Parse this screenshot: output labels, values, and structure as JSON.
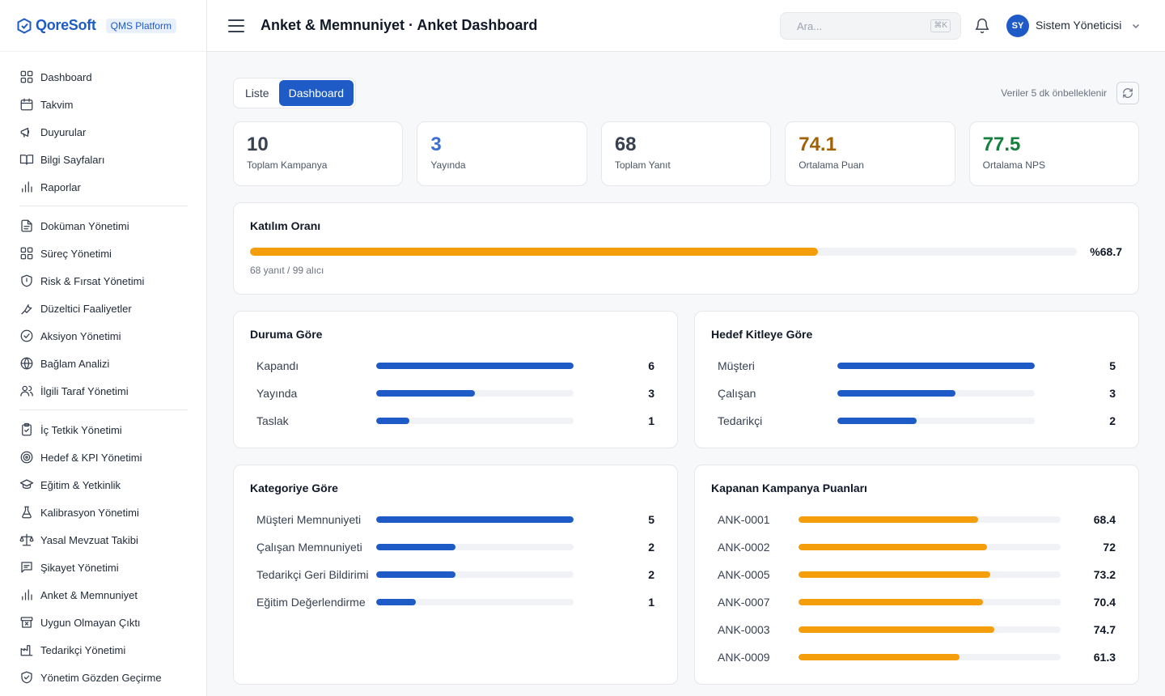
{
  "brand": {
    "name": "QoreSoft",
    "badge": "QMS Platform"
  },
  "sidebar": {
    "groups": [
      [
        {
          "label": "Dashboard",
          "icon": "grid-icon"
        },
        {
          "label": "Takvim",
          "icon": "calendar-icon"
        },
        {
          "label": "Duyurular",
          "icon": "megaphone-icon"
        },
        {
          "label": "Bilgi Sayfaları",
          "icon": "book-icon"
        },
        {
          "label": "Raporlar",
          "icon": "bar-chart-icon"
        }
      ],
      [
        {
          "label": "Doküman Yönetimi",
          "icon": "document-icon"
        },
        {
          "label": "Süreç Yönetimi",
          "icon": "grid-icon"
        },
        {
          "label": "Risk & Fırsat Yönetimi",
          "icon": "shield-icon"
        },
        {
          "label": "Düzeltici Faaliyetler",
          "icon": "wrench-icon"
        },
        {
          "label": "Aksiyon Yönetimi",
          "icon": "check-circle-icon"
        },
        {
          "label": "Bağlam Analizi",
          "icon": "globe-icon"
        },
        {
          "label": "İlgili Taraf Yönetimi",
          "icon": "users-icon"
        }
      ],
      [
        {
          "label": "İç Tetkik Yönetimi",
          "icon": "clipboard-check-icon"
        },
        {
          "label": "Hedef & KPI Yönetimi",
          "icon": "target-icon"
        },
        {
          "label": "Eğitim & Yetkinlik",
          "icon": "graduation-cap-icon"
        },
        {
          "label": "Kalibrasyon Yönetimi",
          "icon": "flask-icon"
        },
        {
          "label": "Yasal Mevzuat Takibi",
          "icon": "scale-icon"
        },
        {
          "label": "Şikayet Yönetimi",
          "icon": "message-icon"
        },
        {
          "label": "Anket & Memnuniyet",
          "icon": "bar-chart-icon"
        },
        {
          "label": "Uygun Olmayan Çıktı",
          "icon": "archive-x-icon"
        },
        {
          "label": "Tedarikçi Yönetimi",
          "icon": "factory-icon"
        },
        {
          "label": "Yönetim Gözden Geçirme",
          "icon": "shield-check-icon"
        }
      ]
    ]
  },
  "header": {
    "title": "Anket & Memnuniyet · Anket Dashboard",
    "search_placeholder": "Ara...",
    "search_shortcut": "⌘K",
    "user_initials": "SY",
    "user_name": "Sistem Yöneticisi"
  },
  "toolbar": {
    "tab_list": "Liste",
    "tab_dashboard": "Dashboard",
    "active_tab": "Dashboard",
    "cache_note": "Veriler 5 dk önbelleklenir"
  },
  "stats": [
    {
      "value": "10",
      "label": "Toplam Kampanya",
      "color": "#374151"
    },
    {
      "value": "3",
      "label": "Yayında",
      "color": "#3b6fd4"
    },
    {
      "value": "68",
      "label": "Toplam Yanıt",
      "color": "#374151"
    },
    {
      "value": "74.1",
      "label": "Ortalama Puan",
      "color": "#a16207"
    },
    {
      "value": "77.5",
      "label": "Ortalama NPS",
      "color": "#15803d"
    }
  ],
  "participation": {
    "title": "Katılım Oranı",
    "rate": 68.7,
    "rate_label": "%68.7",
    "detail": "68 yanıt / 99 alıcı"
  },
  "by_status": {
    "title": "Duruma Göre",
    "max": 6,
    "rows": [
      {
        "label": "Kapandı",
        "value": 6
      },
      {
        "label": "Yayında",
        "value": 3
      },
      {
        "label": "Taslak",
        "value": 1
      }
    ]
  },
  "by_audience": {
    "title": "Hedef Kitleye Göre",
    "max": 5,
    "rows": [
      {
        "label": "Müşteri",
        "value": 5
      },
      {
        "label": "Çalışan",
        "value": 3
      },
      {
        "label": "Tedarikçi",
        "value": 2
      }
    ]
  },
  "by_category": {
    "title": "Kategoriye Göre",
    "max": 5,
    "rows": [
      {
        "label": "Müşteri Memnuniyeti",
        "value": 5
      },
      {
        "label": "Çalışan Memnuniyeti",
        "value": 2
      },
      {
        "label": "Tedarikçi Geri Bildirimi",
        "value": 2
      },
      {
        "label": "Eğitim Değerlendirme",
        "value": 1
      }
    ]
  },
  "closed_scores": {
    "title": "Kapanan Kampanya Puanları",
    "max": 100,
    "rows": [
      {
        "label": "ANK-0001",
        "value": 68.4
      },
      {
        "label": "ANK-0002",
        "value": 72
      },
      {
        "label": "ANK-0005",
        "value": 73.2
      },
      {
        "label": "ANK-0007",
        "value": 70.4
      },
      {
        "label": "ANK-0003",
        "value": 74.7
      },
      {
        "label": "ANK-0009",
        "value": 61.3
      }
    ]
  }
}
